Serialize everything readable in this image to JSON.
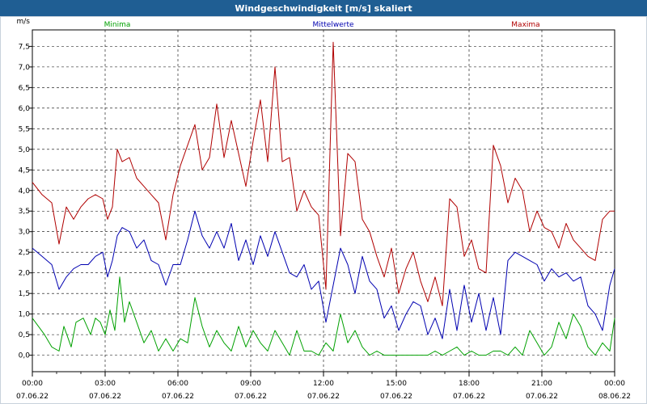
{
  "window": {
    "title": "Windgeschwindigkeit [m/s] skaliert"
  },
  "chart_data": {
    "type": "line",
    "title": "Windgeschwindigkeit [m/s] skaliert",
    "ylabel": "m/s",
    "xlabel": "",
    "ylim": [
      -0.4,
      7.9
    ],
    "yticks": [
      "0,0",
      "0,5",
      "1,0",
      "1,5",
      "2,0",
      "2,5",
      "3,0",
      "3,5",
      "4,0",
      "4,5",
      "5,0",
      "5,5",
      "6,0",
      "6,5",
      "7,0",
      "7,5"
    ],
    "xticks": [
      {
        "time": "00:00",
        "date": "07.06.22"
      },
      {
        "time": "03:00",
        "date": "07.06.22"
      },
      {
        "time": "06:00",
        "date": "07.06.22"
      },
      {
        "time": "09:00",
        "date": "07.06.22"
      },
      {
        "time": "12:00",
        "date": "07.06.22"
      },
      {
        "time": "15:00",
        "date": "07.06.22"
      },
      {
        "time": "18:00",
        "date": "07.06.22"
      },
      {
        "time": "21:00",
        "date": "07.06.22"
      },
      {
        "time": "00:00",
        "date": "08.06.22"
      }
    ],
    "x_range_hours": [
      0,
      24
    ],
    "grid": true,
    "legend_position": "top",
    "series": [
      {
        "name": "Minima",
        "color": "#00a000",
        "x": [
          0,
          0.5,
          0.8,
          1.1,
          1.3,
          1.6,
          1.8,
          2.1,
          2.4,
          2.6,
          2.8,
          3.0,
          3.2,
          3.4,
          3.6,
          3.8,
          4.0,
          4.3,
          4.6,
          4.9,
          5.2,
          5.5,
          5.8,
          6.1,
          6.4,
          6.7,
          7.0,
          7.3,
          7.6,
          7.9,
          8.2,
          8.5,
          8.8,
          9.1,
          9.4,
          9.7,
          10.0,
          10.3,
          10.6,
          10.9,
          11.2,
          11.5,
          11.8,
          12.1,
          12.4,
          12.7,
          13.0,
          13.3,
          13.6,
          13.9,
          14.2,
          14.5,
          14.8,
          15.1,
          15.4,
          15.7,
          16.0,
          16.3,
          16.6,
          16.9,
          17.2,
          17.5,
          17.8,
          18.1,
          18.4,
          18.7,
          19.0,
          19.3,
          19.6,
          19.9,
          20.2,
          20.5,
          20.8,
          21.1,
          21.4,
          21.7,
          22.0,
          22.3,
          22.6,
          22.9,
          23.2,
          23.5,
          23.8,
          24.0
        ],
        "values": [
          0.9,
          0.5,
          0.2,
          0.1,
          0.7,
          0.2,
          0.8,
          0.9,
          0.5,
          0.9,
          0.8,
          0.5,
          1.1,
          0.6,
          1.9,
          0.8,
          1.3,
          0.8,
          0.3,
          0.6,
          0.1,
          0.4,
          0.1,
          0.4,
          0.3,
          1.4,
          0.7,
          0.2,
          0.6,
          0.3,
          0.1,
          0.7,
          0.2,
          0.6,
          0.3,
          0.1,
          0.6,
          0.3,
          0.0,
          0.6,
          0.1,
          0.1,
          0.0,
          0.3,
          0.1,
          1.0,
          0.3,
          0.6,
          0.2,
          0.0,
          0.1,
          0.0,
          0.0,
          0.0,
          0.0,
          0.0,
          0.0,
          0.0,
          0.1,
          0.0,
          0.1,
          0.2,
          0.0,
          0.1,
          0.0,
          0.0,
          0.1,
          0.1,
          0.0,
          0.2,
          0.0,
          0.6,
          0.3,
          0.0,
          0.2,
          0.8,
          0.4,
          1.0,
          0.7,
          0.2,
          0.0,
          0.3,
          0.1,
          0.9
        ]
      },
      {
        "name": "Mittelwerte",
        "color": "#0000b0",
        "x": [
          0,
          0.4,
          0.8,
          1.1,
          1.4,
          1.7,
          2.0,
          2.3,
          2.6,
          2.9,
          3.1,
          3.3,
          3.5,
          3.7,
          4.0,
          4.3,
          4.6,
          4.9,
          5.2,
          5.5,
          5.8,
          6.1,
          6.4,
          6.7,
          7.0,
          7.3,
          7.6,
          7.9,
          8.2,
          8.5,
          8.8,
          9.1,
          9.4,
          9.7,
          10.0,
          10.3,
          10.6,
          10.9,
          11.2,
          11.5,
          11.8,
          12.1,
          12.4,
          12.7,
          13.0,
          13.3,
          13.6,
          13.9,
          14.2,
          14.5,
          14.8,
          15.1,
          15.4,
          15.7,
          16.0,
          16.3,
          16.6,
          16.9,
          17.2,
          17.5,
          17.8,
          18.1,
          18.4,
          18.7,
          19.0,
          19.3,
          19.6,
          19.9,
          20.2,
          20.5,
          20.8,
          21.1,
          21.4,
          21.7,
          22.0,
          22.3,
          22.6,
          22.9,
          23.2,
          23.5,
          23.8,
          24.0
        ],
        "values": [
          2.6,
          2.4,
          2.2,
          1.6,
          1.9,
          2.1,
          2.2,
          2.2,
          2.4,
          2.5,
          1.9,
          2.3,
          2.9,
          3.1,
          3.0,
          2.6,
          2.8,
          2.3,
          2.2,
          1.7,
          2.2,
          2.2,
          2.8,
          3.5,
          2.9,
          2.6,
          3.0,
          2.6,
          3.2,
          2.3,
          2.8,
          2.2,
          2.9,
          2.4,
          3.0,
          2.5,
          2.0,
          1.9,
          2.2,
          1.6,
          1.8,
          0.8,
          1.7,
          2.6,
          2.2,
          1.5,
          2.4,
          1.8,
          1.6,
          0.9,
          1.2,
          0.6,
          1.0,
          1.3,
          1.2,
          0.5,
          0.9,
          0.4,
          1.6,
          0.6,
          1.7,
          0.8,
          1.5,
          0.6,
          1.4,
          0.5,
          2.3,
          2.5,
          2.4,
          2.3,
          2.2,
          1.8,
          2.1,
          1.9,
          2.0,
          1.8,
          1.9,
          1.2,
          1.0,
          0.6,
          1.7,
          2.1
        ]
      },
      {
        "name": "Maxima",
        "color": "#b00000",
        "x": [
          0,
          0.4,
          0.8,
          1.1,
          1.4,
          1.7,
          2.0,
          2.3,
          2.6,
          2.9,
          3.1,
          3.3,
          3.5,
          3.7,
          4.0,
          4.3,
          4.6,
          4.9,
          5.2,
          5.5,
          5.8,
          6.1,
          6.4,
          6.7,
          7.0,
          7.3,
          7.6,
          7.9,
          8.2,
          8.5,
          8.8,
          9.1,
          9.4,
          9.7,
          10.0,
          10.3,
          10.6,
          10.9,
          11.2,
          11.5,
          11.8,
          12.1,
          12.4,
          12.7,
          13.0,
          13.3,
          13.6,
          13.9,
          14.2,
          14.5,
          14.8,
          15.1,
          15.4,
          15.7,
          16.0,
          16.3,
          16.6,
          16.9,
          17.2,
          17.5,
          17.8,
          18.1,
          18.4,
          18.7,
          19.0,
          19.3,
          19.6,
          19.9,
          20.2,
          20.5,
          20.8,
          21.1,
          21.4,
          21.7,
          22.0,
          22.3,
          22.6,
          22.9,
          23.2,
          23.5,
          23.8,
          24.0
        ],
        "values": [
          4.2,
          3.9,
          3.7,
          2.7,
          3.6,
          3.3,
          3.6,
          3.8,
          3.9,
          3.8,
          3.3,
          3.6,
          5.0,
          4.7,
          4.8,
          4.3,
          4.1,
          3.9,
          3.7,
          2.8,
          3.9,
          4.6,
          5.1,
          5.6,
          4.5,
          4.8,
          6.1,
          4.8,
          5.7,
          4.9,
          4.1,
          5.2,
          6.2,
          4.7,
          7.0,
          4.7,
          4.8,
          3.5,
          4.0,
          3.6,
          3.4,
          1.6,
          7.6,
          2.9,
          4.9,
          4.7,
          3.3,
          3.0,
          2.4,
          1.9,
          2.6,
          1.5,
          2.1,
          2.5,
          1.8,
          1.3,
          1.9,
          1.2,
          3.8,
          3.6,
          2.4,
          2.8,
          2.1,
          2.0,
          5.1,
          4.6,
          3.7,
          4.3,
          4.0,
          3.0,
          3.5,
          3.1,
          3.0,
          2.6,
          3.2,
          2.8,
          2.6,
          2.4,
          2.3,
          3.3,
          3.5,
          3.5
        ]
      }
    ]
  }
}
